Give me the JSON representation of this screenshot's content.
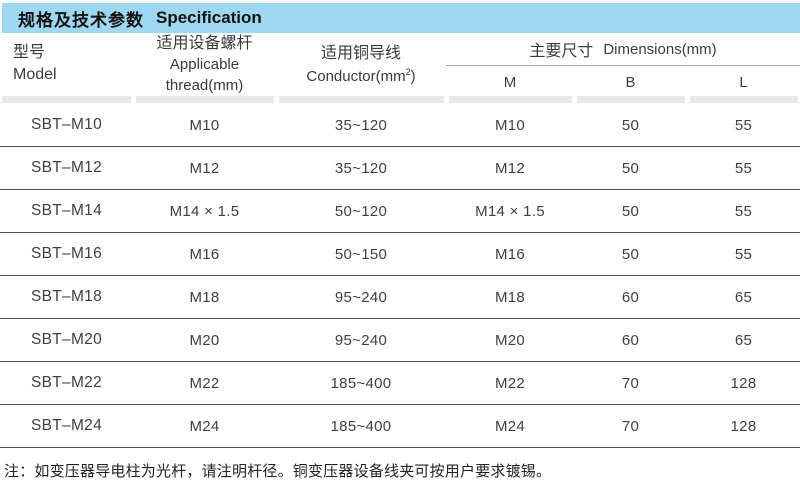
{
  "header": {
    "title_zh": "规格及技术参数",
    "title_en": "Specification",
    "bar_color": "#9fd7f1"
  },
  "table": {
    "columns": {
      "model_zh": "型号",
      "model_en": "Model",
      "thread_zh": "适用设备螺杆",
      "thread_en_line1": "Applicable",
      "thread_en_line2": "thread(mm)",
      "conductor_zh": "适用铜导线",
      "conductor_en_prefix": "Conductor(mm",
      "conductor_sup": "2",
      "conductor_en_suffix": ")",
      "dims_zh": "主要尺寸",
      "dims_en": "Dimensions(mm)",
      "sub_m": "M",
      "sub_b": "B",
      "sub_l": "L"
    },
    "rows": [
      {
        "model": "SBT–M10",
        "thread": "M10",
        "conductor": "35~120",
        "m": "M10",
        "b": "50",
        "l": "55"
      },
      {
        "model": "SBT–M12",
        "thread": "M12",
        "conductor": "35~120",
        "m": "M12",
        "b": "50",
        "l": "55"
      },
      {
        "model": "SBT–M14",
        "thread": "M14 × 1.5",
        "conductor": "50~120",
        "m": "M14 × 1.5",
        "b": "50",
        "l": "55"
      },
      {
        "model": "SBT–M16",
        "thread": "M16",
        "conductor": "50~150",
        "m": "M16",
        "b": "50",
        "l": "55"
      },
      {
        "model": "SBT–M18",
        "thread": "M18",
        "conductor": "95~240",
        "m": "M18",
        "b": "60",
        "l": "65"
      },
      {
        "model": "SBT–M20",
        "thread": "M20",
        "conductor": "95~240",
        "m": "M20",
        "b": "60",
        "l": "65"
      },
      {
        "model": "SBT–M22",
        "thread": "M22",
        "conductor": "185~400",
        "m": "M22",
        "b": "70",
        "l": "128"
      },
      {
        "model": "SBT–M24",
        "thread": "M24",
        "conductor": "185~400",
        "m": "M24",
        "b": "70",
        "l": "128"
      }
    ]
  },
  "footer": {
    "note": "注：如变压器导电柱为光杆，请注明杆径。铜变压器设备线夹可按用户要求镀锡。"
  }
}
